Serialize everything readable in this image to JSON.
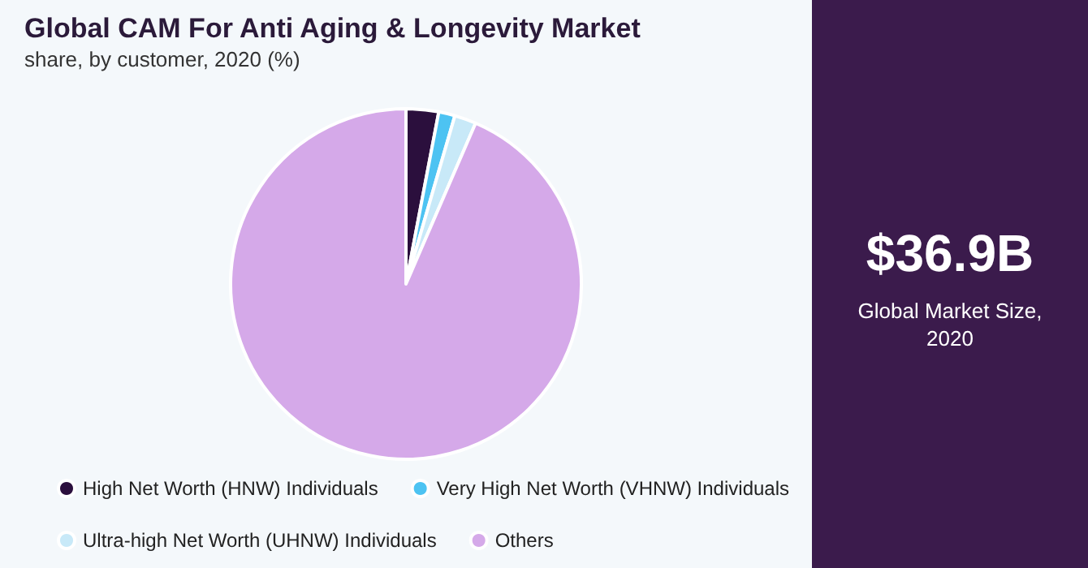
{
  "chart_data": {
    "type": "pie",
    "title": "Global CAM For Anti Aging & Longevity Market",
    "subtitle": "share, by customer, 2020 (%)",
    "categories": [
      "High Net Worth (HNW) Individuals",
      "Very High Net Worth (VHNW) Individuals",
      "Ultra-high Net Worth (UHNW) Individuals",
      "Others"
    ],
    "values": [
      3,
      1.5,
      2,
      93.5
    ],
    "colors": [
      "#2b0f3d",
      "#4dc3f2",
      "#c8e9f8",
      "#d5a9e9"
    ],
    "legend": "bottom",
    "annotations": [
      "$36.9B",
      "Global Market Size, 2020"
    ]
  }
}
